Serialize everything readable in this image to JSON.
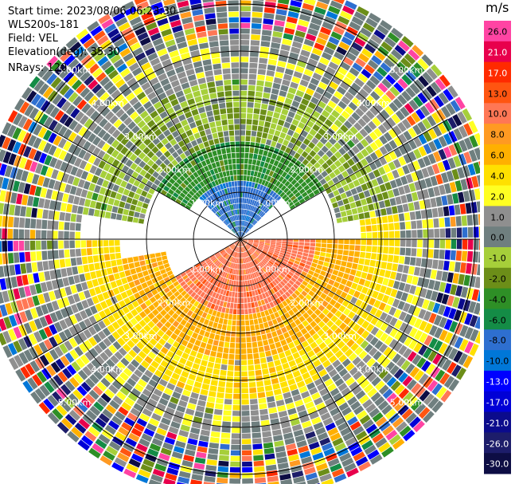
{
  "header": {
    "start_time": "Start time: 2023/08/06 06:23:30",
    "instrument": "WLS200s-181",
    "field": "Field: VEL",
    "elevation": "Elevation(deg): 35.30",
    "nrays": "NRays: 120"
  },
  "colorbar": {
    "unit": "m/s",
    "colors": [
      "#ff44a3",
      "#e8004c",
      "#ff2a00",
      "#ff5511",
      "#ff7755",
      "#ff9a22",
      "#ffb000",
      "#ffe000",
      "#ffff22",
      "#8f8f8f",
      "#6f7f7f",
      "#a6cf3a",
      "#6c8e18",
      "#2e8f26",
      "#148c46",
      "#2e6fd0",
      "#0077d8",
      "#0000ff",
      "#0000d6",
      "#0b0b8c",
      "#1d1d6a",
      "#0d0d44"
    ],
    "ticks": [
      "26.0",
      "21.0",
      "17.0",
      "13.0",
      "10.0",
      "8.0",
      "6.0",
      "4.0",
      "2.0",
      "1.0",
      "0.0",
      "-1.0",
      "-2.0",
      "-4.0",
      "-6.0",
      "-8.0",
      "-10.0",
      "-13.0",
      "-17.0",
      "-21.0",
      "-26.0",
      "-30.0"
    ]
  },
  "chart_data": {
    "type": "heatmap",
    "projection": "polar-ppi",
    "field": "VEL",
    "units": "m/s",
    "nrays": 120,
    "range_rings_km": [
      1.0,
      2.0,
      3.0,
      4.0,
      5.0
    ],
    "ring_labels": [
      "1.00km",
      "2.00km",
      "3.00km",
      "4.00km",
      "5.00km"
    ],
    "value_range": [
      -30,
      26
    ],
    "sectors": [
      {
        "azimuth_deg": [
          315,
          45
        ],
        "range_km": [
          0.0,
          1.2
        ],
        "velocity": -9
      },
      {
        "azimuth_deg": [
          300,
          60
        ],
        "range_km": [
          1.2,
          2.1
        ],
        "velocity": -5
      },
      {
        "azimuth_deg": [
          280,
          80
        ],
        "range_km": [
          2.1,
          3.4
        ],
        "velocity": -1.5
      },
      {
        "azimuth_deg": [
          90,
          240
        ],
        "range_km": [
          0.0,
          1.6
        ],
        "velocity": 9
      },
      {
        "azimuth_deg": [
          90,
          260
        ],
        "range_km": [
          1.6,
          2.6
        ],
        "velocity": 5
      },
      {
        "azimuth_deg": [
          80,
          270
        ],
        "range_km": [
          2.6,
          3.4
        ],
        "velocity": 3
      },
      {
        "azimuth_deg": [
          0,
          360
        ],
        "range_km": [
          3.4,
          4.4
        ],
        "velocity": 0.5
      },
      {
        "azimuth_deg": [
          0,
          360
        ],
        "range_km": [
          4.4,
          5.6
        ],
        "velocity": "noise"
      }
    ]
  }
}
